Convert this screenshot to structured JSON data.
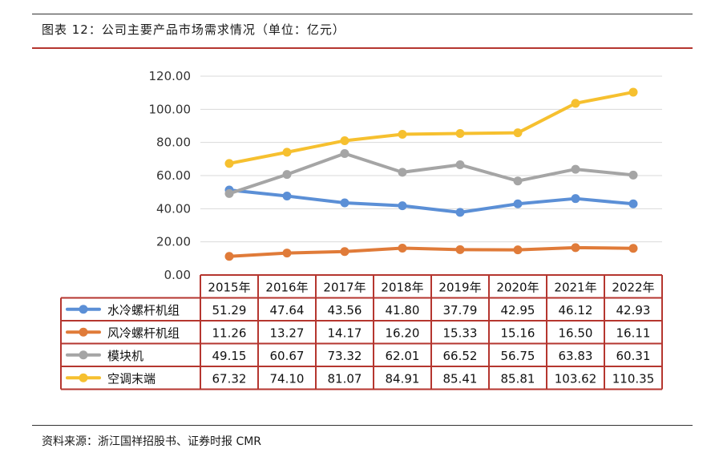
{
  "figure": {
    "title": "图表 12：公司主要产品市场需求情况（单位：亿元）",
    "source": "资料来源：浙江国祥招股书、证券时报 CMR"
  },
  "chart_data": {
    "type": "line",
    "title": "图表 12：公司主要产品市场需求情况（单位：亿元）",
    "xlabel": "",
    "ylabel": "",
    "categories": [
      "2015年",
      "2016年",
      "2017年",
      "2018年",
      "2019年",
      "2020年",
      "2021年",
      "2022年"
    ],
    "ylim": [
      0,
      120
    ],
    "yticks": [
      "0.00",
      "20.00",
      "40.00",
      "60.00",
      "80.00",
      "100.00",
      "120.00"
    ],
    "grid": true,
    "legend": "data-table",
    "series": [
      {
        "name": "水冷螺杆机组",
        "color": "#5b8fd6",
        "values": [
          51.29,
          47.64,
          43.56,
          41.8,
          37.79,
          42.95,
          46.12,
          42.93
        ],
        "labels": [
          "51.29",
          "47.64",
          "43.56",
          "41.80",
          "37.79",
          "42.95",
          "46.12",
          "42.93"
        ]
      },
      {
        "name": "风冷螺杆机组",
        "color": "#e07b39",
        "values": [
          11.26,
          13.27,
          14.17,
          16.2,
          15.33,
          15.16,
          16.5,
          16.11
        ],
        "labels": [
          "11.26",
          "13.27",
          "14.17",
          "16.20",
          "15.33",
          "15.16",
          "16.50",
          "16.11"
        ]
      },
      {
        "name": "模块机",
        "color": "#a5a5a5",
        "values": [
          49.15,
          60.67,
          73.32,
          62.01,
          66.52,
          56.75,
          63.83,
          60.31
        ],
        "labels": [
          "49.15",
          "60.67",
          "73.32",
          "62.01",
          "66.52",
          "56.75",
          "63.83",
          "60.31"
        ]
      },
      {
        "name": "空调末端",
        "color": "#f6c02f",
        "values": [
          67.32,
          74.1,
          81.07,
          84.91,
          85.41,
          85.81,
          103.62,
          110.35
        ],
        "labels": [
          "67.32",
          "74.10",
          "81.07",
          "84.91",
          "85.41",
          "85.81",
          "103.62",
          "110.35"
        ]
      }
    ],
    "table_border_color": "#b5362f"
  }
}
